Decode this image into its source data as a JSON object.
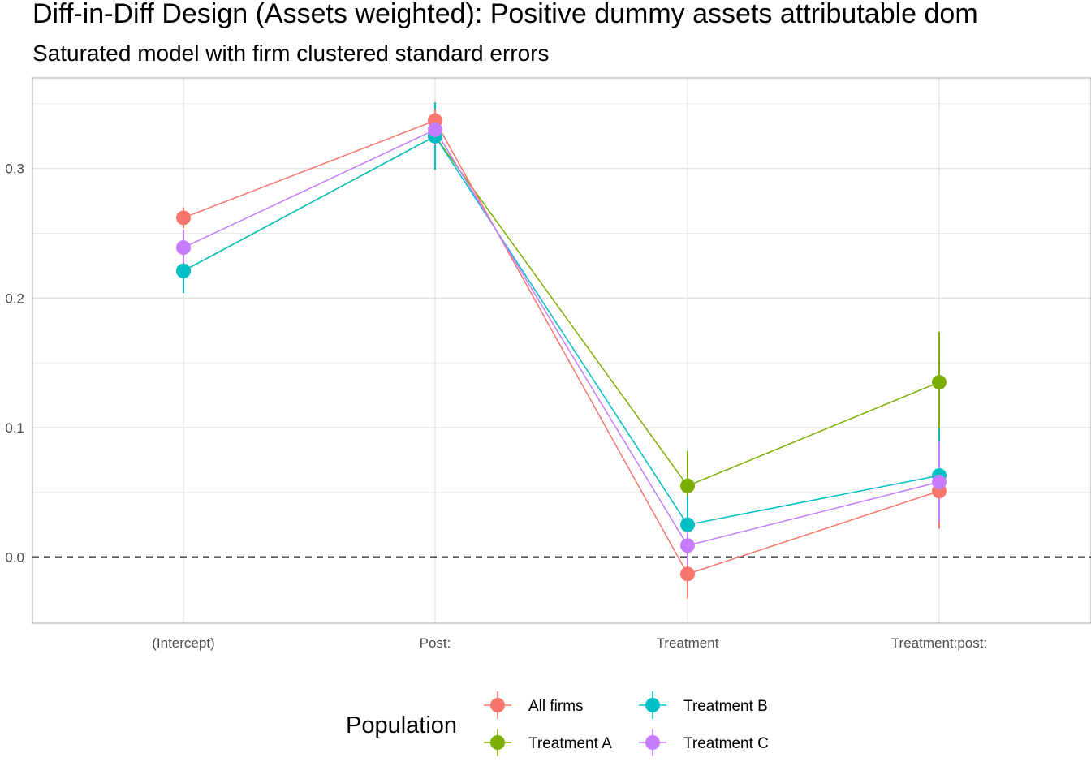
{
  "chart_data": {
    "type": "scatter",
    "title": "Diff-in-Diff Design (Assets weighted): Positive dummy assets attributable dom",
    "subtitle": "Saturated model with firm clustered standard errors",
    "xlabel": "",
    "ylabel": "",
    "categories": [
      "(Intercept)",
      "Post:",
      "Treatment",
      "Treatment:post:"
    ],
    "ylim": [
      -0.051,
      0.37
    ],
    "yticks": [
      0.0,
      0.1,
      0.2,
      0.3
    ],
    "ytick_labels": [
      "0.0",
      "0.1",
      "0.2",
      "0.3"
    ],
    "reference_line": {
      "y": 0.0,
      "style": "dashed"
    },
    "grid": true,
    "legend": {
      "title": "Population",
      "position": "bottom"
    },
    "series": [
      {
        "name": "All firms",
        "color": "#F8766D",
        "values": [
          0.262,
          0.337,
          -0.013,
          0.051
        ],
        "ci_low": [
          0.254,
          0.328,
          -0.032,
          0.022
        ],
        "ci_high": [
          0.27,
          0.346,
          0.005,
          0.08
        ]
      },
      {
        "name": "Treatment A",
        "color": "#7CAE00",
        "values": [
          0.221,
          0.325,
          0.055,
          0.135
        ],
        "ci_low": [
          0.204,
          0.299,
          0.028,
          0.096
        ],
        "ci_high": [
          0.238,
          0.351,
          0.082,
          0.174
        ]
      },
      {
        "name": "Treatment B",
        "color": "#00BFC4",
        "values": [
          0.221,
          0.325,
          0.025,
          0.063
        ],
        "ci_low": [
          0.204,
          0.299,
          0.003,
          0.027
        ],
        "ci_high": [
          0.238,
          0.351,
          0.047,
          0.099
        ]
      },
      {
        "name": "Treatment C",
        "color": "#C77CFF",
        "values": [
          0.239,
          0.33,
          0.009,
          0.058
        ],
        "ci_low": [
          0.225,
          0.318,
          -0.006,
          0.027
        ],
        "ci_high": [
          0.253,
          0.342,
          0.024,
          0.089
        ]
      }
    ],
    "legend_order": [
      "All firms",
      "Treatment A",
      "Treatment B",
      "Treatment C"
    ]
  }
}
